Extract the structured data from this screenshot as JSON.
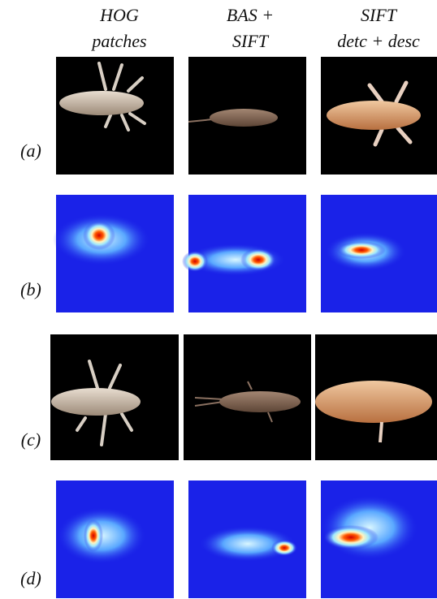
{
  "columns": [
    {
      "line1": "HOG",
      "line2": "patches"
    },
    {
      "line1": "BAS +",
      "line2": "SIFT"
    },
    {
      "line1": "SIFT",
      "line2": "detc + desc"
    }
  ],
  "rows": [
    "(a)",
    "(b)",
    "(c)",
    "(d)"
  ]
}
